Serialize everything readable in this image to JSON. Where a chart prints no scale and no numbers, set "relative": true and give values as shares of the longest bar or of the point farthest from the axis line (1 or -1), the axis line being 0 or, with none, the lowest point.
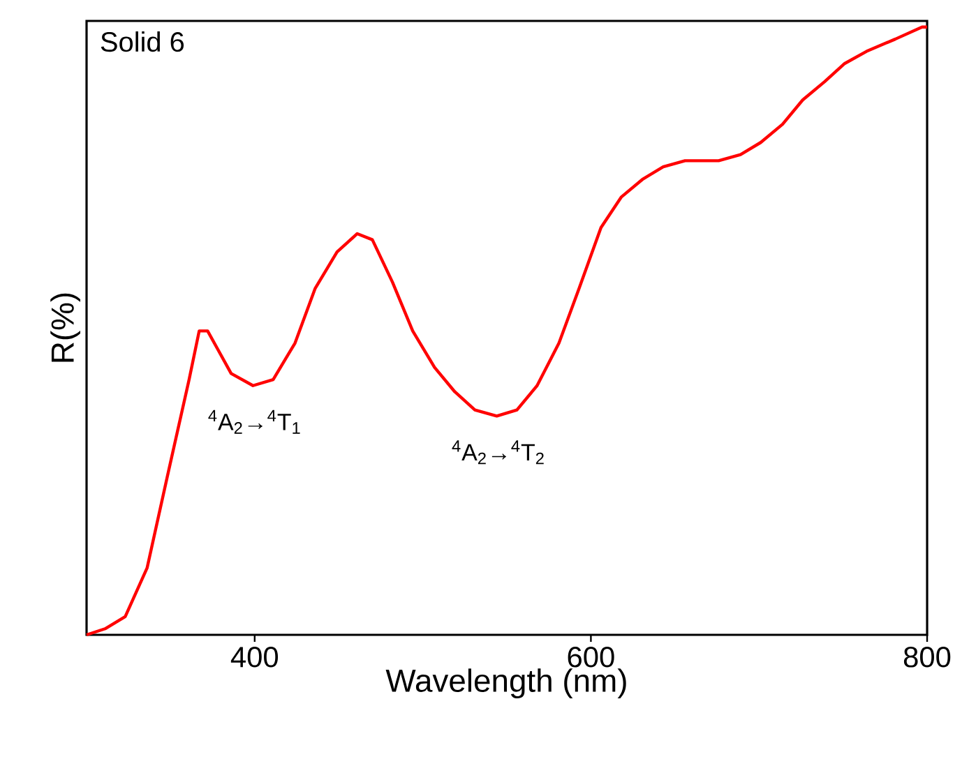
{
  "chart_data": {
    "type": "line",
    "title": "Solid 6",
    "xlabel": "Wavelength (nm)",
    "ylabel": "R(%)",
    "relative": true,
    "xlim": [
      300,
      800
    ],
    "xticks": [
      400,
      600,
      800
    ],
    "marker": "none",
    "line_style": "solid",
    "annotations": [
      {
        "text": "$^{4}$A$_{2}$→$^{4}$T$_{1}$",
        "x": 400,
        "y": 0.41
      },
      {
        "text": "$^{4}$A$_{2}$→$^{4}$T$_{2}$",
        "x": 545,
        "y": 0.36
      }
    ],
    "series": [
      {
        "color": "#ff0000",
        "x": [
          300,
          311,
          323,
          336,
          348,
          361,
          367,
          372,
          378,
          386,
          399,
          411,
          424,
          436,
          449,
          461,
          470,
          482,
          494,
          507,
          519,
          531,
          544,
          556,
          568,
          581,
          593,
          606,
          618,
          631,
          643,
          656,
          664,
          676,
          689,
          701,
          714,
          726,
          739,
          751,
          764,
          781,
          797,
          800
        ],
        "values": [
          0,
          0.01,
          0.03,
          0.11,
          0.26,
          0.42,
          0.5,
          0.5,
          0.47,
          0.43,
          0.41,
          0.42,
          0.48,
          0.57,
          0.63,
          0.66,
          0.65,
          0.58,
          0.5,
          0.44,
          0.4,
          0.37,
          0.36,
          0.37,
          0.41,
          0.48,
          0.57,
          0.67,
          0.72,
          0.75,
          0.77,
          0.78,
          0.78,
          0.78,
          0.79,
          0.81,
          0.84,
          0.88,
          0.91,
          0.94,
          0.96,
          0.98,
          1.0,
          1.0
        ]
      }
    ]
  }
}
